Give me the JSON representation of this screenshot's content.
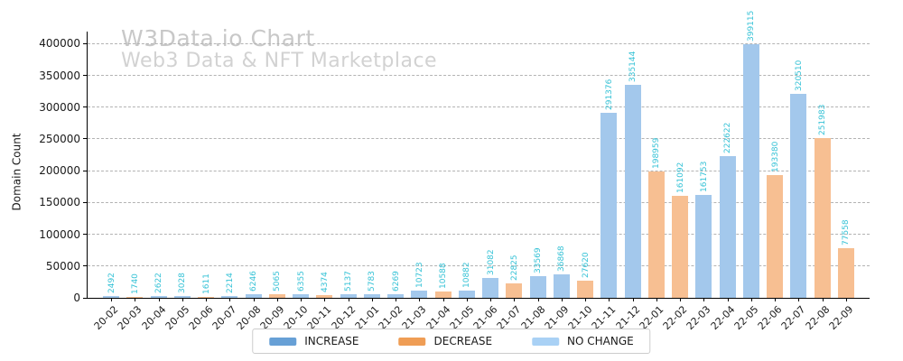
{
  "header": {
    "title": "W3Data.io Chart",
    "subtitle": "Web3 Data & NFT Marketplace"
  },
  "axes": {
    "ylabel": "Domain Count"
  },
  "legend": {
    "items": [
      {
        "label": "INCREASE",
        "kind": "increase"
      },
      {
        "label": "DECREASE",
        "kind": "decrease"
      },
      {
        "label": "NO CHANGE",
        "kind": "no_change"
      }
    ],
    "position": "bottom-center"
  },
  "colors": {
    "increase_bar": "#a3c8ec",
    "decrease_bar": "#f7bf92",
    "no_change_bar": "#cde4f8",
    "increase_legend": "#67a0d6",
    "decrease_legend": "#ef9d55",
    "no_change_legend": "#a9d1f5",
    "value_label": "#35c2d6",
    "title": "#c8c8c8",
    "subtitle": "#d2d2d2",
    "grid": "#b3b3b3",
    "axis": "#000000"
  },
  "chart_data": {
    "type": "bar",
    "title": "W3Data.io Chart",
    "subtitle": "Web3 Data & NFT Marketplace",
    "xlabel": "",
    "ylabel": "Domain Count",
    "categories": [
      "20-02",
      "20-03",
      "20-04",
      "20-05",
      "20-06",
      "20-07",
      "20-08",
      "20-09",
      "20-10",
      "20-11",
      "20-12",
      "21-01",
      "21-02",
      "21-03",
      "21-04",
      "21-05",
      "21-06",
      "21-07",
      "21-08",
      "21-09",
      "21-10",
      "21-11",
      "21-12",
      "22-01",
      "22-02",
      "22-03",
      "22-04",
      "22-05",
      "22-06",
      "22-07",
      "22-08",
      "22-09"
    ],
    "values": [
      2492,
      1740,
      2622,
      3028,
      1611,
      2214,
      6246,
      5065,
      6355,
      4374,
      5137,
      5783,
      6269,
      10723,
      10588,
      10882,
      31082,
      22825,
      33569,
      36868,
      27620,
      291376,
      335144,
      198959,
      161092,
      161753,
      222622,
      399115,
      193380,
      320510,
      251983,
      77558
    ],
    "directions": [
      "increase",
      "decrease",
      "increase",
      "increase",
      "decrease",
      "increase",
      "increase",
      "decrease",
      "increase",
      "decrease",
      "increase",
      "increase",
      "increase",
      "increase",
      "decrease",
      "increase",
      "increase",
      "decrease",
      "increase",
      "increase",
      "decrease",
      "increase",
      "increase",
      "decrease",
      "decrease",
      "increase",
      "increase",
      "increase",
      "decrease",
      "increase",
      "decrease",
      "decrease"
    ],
    "ylim": [
      0,
      419000
    ],
    "yticks": [
      0,
      50000,
      100000,
      150000,
      200000,
      250000,
      300000,
      350000,
      400000
    ],
    "grid": true,
    "grid_style": "dashed",
    "legend_entries": [
      "INCREASE",
      "DECREASE",
      "NO CHANGE"
    ],
    "legend_position": "bottom-center",
    "bar_value_labels": true
  }
}
